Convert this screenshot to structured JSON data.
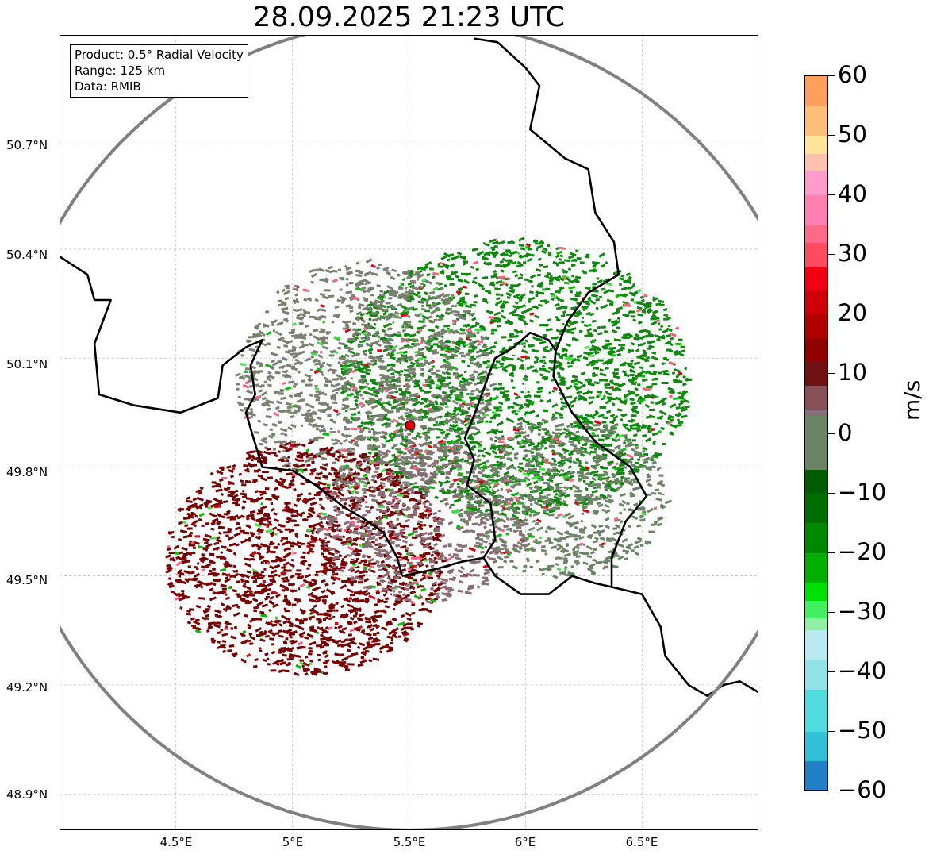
{
  "title": "28.09.2025 21:23 UTC",
  "info": {
    "product": "Product: 0.5° Radial Velocity",
    "range": "Range: 125 km",
    "data": "Data: RMIB"
  },
  "map": {
    "lat_labels": [
      "50.7°N",
      "50.4°N",
      "50.1°N",
      "49.8°N",
      "49.5°N",
      "49.2°N",
      "48.9°N"
    ],
    "lon_labels": [
      "4.5°E",
      "5°E",
      "5.5°E",
      "6°E",
      "6.5°E"
    ],
    "lon_range": [
      4.0,
      7.0
    ],
    "lat_range": [
      48.8,
      50.99
    ],
    "radar_site": {
      "lon": 5.505,
      "lat": 49.915
    },
    "range_ring_color": "#808080",
    "border_color": "#000000",
    "radar_color": "#e00000"
  },
  "colorbar": {
    "unit": "m/s",
    "min": -60,
    "max": 60,
    "tick_labels": [
      "60",
      "50",
      "40",
      "30",
      "20",
      "10",
      "0",
      "−10",
      "−20",
      "−30",
      "−40",
      "−50",
      "−60"
    ],
    "tick_values": [
      60,
      50,
      40,
      30,
      20,
      10,
      0,
      -10,
      -20,
      -30,
      -40,
      -50,
      -60
    ],
    "stops": [
      {
        "from": 55,
        "to": 60,
        "color": "#ff9f5a"
      },
      {
        "from": 50,
        "to": 55,
        "color": "#ffbf7a"
      },
      {
        "from": 47,
        "to": 50,
        "color": "#ffe49a"
      },
      {
        "from": 44,
        "to": 47,
        "color": "#ffc0b0"
      },
      {
        "from": 40,
        "to": 44,
        "color": "#ff9ccc"
      },
      {
        "from": 35,
        "to": 40,
        "color": "#ff80b0"
      },
      {
        "from": 32,
        "to": 35,
        "color": "#ff6a8a"
      },
      {
        "from": 28,
        "to": 32,
        "color": "#ff4a60"
      },
      {
        "from": 24,
        "to": 28,
        "color": "#f00010"
      },
      {
        "from": 20,
        "to": 24,
        "color": "#d00008"
      },
      {
        "from": 16,
        "to": 20,
        "color": "#b00000"
      },
      {
        "from": 12,
        "to": 16,
        "color": "#900000"
      },
      {
        "from": 8,
        "to": 12,
        "color": "#701010"
      },
      {
        "from": 4,
        "to": 8,
        "color": "#8a5058"
      },
      {
        "from": 0,
        "to": 4,
        "color": "#887078"
      },
      {
        "from": -3,
        "to": 0,
        "color": "#7c8070"
      },
      {
        "from": -6,
        "to": 3,
        "color": "#6a8464"
      },
      {
        "from": -10,
        "to": -6,
        "color": "#005c00"
      },
      {
        "from": -15,
        "to": -10,
        "color": "#006e00"
      },
      {
        "from": -20,
        "to": -15,
        "color": "#008800"
      },
      {
        "from": -25,
        "to": -20,
        "color": "#00b000"
      },
      {
        "from": -28,
        "to": -25,
        "color": "#00e000"
      },
      {
        "from": -31,
        "to": -28,
        "color": "#40f060"
      },
      {
        "from": -33,
        "to": -31,
        "color": "#90f0a8"
      },
      {
        "from": -38,
        "to": -33,
        "color": "#b8eaf0"
      },
      {
        "from": -43,
        "to": -38,
        "color": "#90e4e8"
      },
      {
        "from": -50,
        "to": -43,
        "color": "#50dcdc"
      },
      {
        "from": -55,
        "to": -50,
        "color": "#30c0d8"
      },
      {
        "from": -60,
        "to": -55,
        "color": "#2080c8"
      }
    ]
  },
  "echo_fields": [
    {
      "name": "green-inbound",
      "lon": 5.95,
      "lat": 50.05,
      "rlon": 0.75,
      "rlat": 0.38,
      "color": "#0a8a0a",
      "density": 0.55
    },
    {
      "name": "grey-zero",
      "lon": 5.3,
      "lat": 50.05,
      "rlon": 0.55,
      "rlat": 0.32,
      "color": "#7a8070",
      "density": 0.5
    },
    {
      "name": "red-outbound",
      "lon": 5.05,
      "lat": 49.55,
      "rlon": 0.6,
      "rlat": 0.32,
      "color": "#7a0000",
      "density": 0.6
    },
    {
      "name": "mauve",
      "lon": 5.55,
      "lat": 49.65,
      "rlon": 0.45,
      "rlat": 0.22,
      "color": "#8a6c74",
      "density": 0.45
    },
    {
      "name": "green-grey-se",
      "lon": 6.15,
      "lat": 49.72,
      "rlon": 0.45,
      "rlat": 0.22,
      "color": "#6a8464",
      "density": 0.5
    }
  ]
}
